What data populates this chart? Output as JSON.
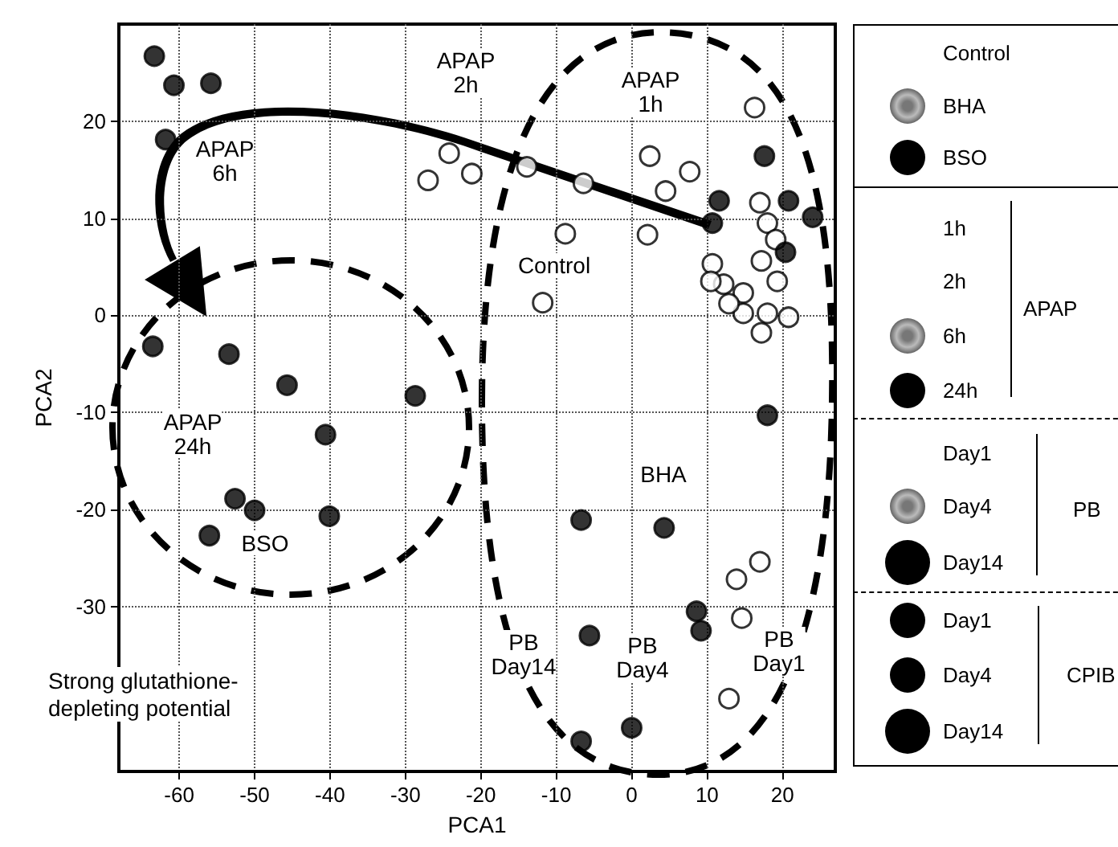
{
  "chart_data": {
    "type": "scatter",
    "xlabel": "PCA1",
    "ylabel": "PCA2",
    "xlim": [
      -68,
      27
    ],
    "ylim": [
      -47,
      30
    ],
    "xticks": [
      -60,
      -50,
      -40,
      -30,
      -20,
      -10,
      0,
      10,
      20
    ],
    "yticks": [
      -30,
      -20,
      -10,
      0,
      10,
      20
    ],
    "grid": true,
    "marker": "circle",
    "series": [
      {
        "color": "#ffffff",
        "x": [
          16.3,
          -24.2,
          -27,
          -21.2,
          -13.9,
          -6.4,
          2.4,
          7.7,
          4.5,
          -8.8,
          2.1,
          -11.8,
          10.7,
          17,
          18,
          19.1,
          17.2,
          19.3,
          12.2,
          10.5,
          14.8,
          14.8,
          18,
          20.8,
          17.2,
          12.9,
          17,
          13.9,
          14.6,
          12.9
        ],
        "values": [
          21.4,
          16.7,
          13.9,
          14.6,
          15.3,
          13.6,
          16.4,
          14.8,
          12.8,
          8.4,
          8.3,
          1.3,
          5.3,
          11.6,
          9.5,
          7.8,
          5.6,
          3.5,
          3.2,
          3.5,
          2.3,
          0.2,
          0.2,
          -0.2,
          -1.8,
          1.2,
          -25.4,
          -27.2,
          -31.2,
          -39.5
        ]
      },
      {
        "color": "#000000",
        "x": [
          -63.3,
          -60.7,
          -55.8,
          -61.8,
          -63.5,
          -53.4,
          -45.7,
          -40.6,
          -28.7,
          -52.6,
          -50,
          -56,
          -40.1,
          -6.7,
          4.3,
          8.6,
          9.2,
          -5.6,
          -6.7,
          0,
          18,
          17.6,
          11.6,
          10.7,
          20.8,
          24,
          20.4
        ],
        "values": [
          26.7,
          23.7,
          23.9,
          18.1,
          -3.2,
          -4,
          -7.2,
          -12.3,
          -8.3,
          -18.9,
          -20.1,
          -22.7,
          -20.7,
          -21.1,
          -21.9,
          -30.5,
          -32.5,
          -33,
          -43.9,
          -42.5,
          -10.3,
          16.4,
          11.8,
          9.5,
          11.8,
          10.1,
          6.5
        ]
      }
    ],
    "annotations": [
      "APAP\n2h",
      "APAP\n1h",
      "APAP\n6h",
      "Control",
      "APAP\n24h",
      "BSO",
      "BHA",
      "PB\nDay14",
      "PB\nDay4",
      "PB\nDay1",
      "Strong glutathione-\ndepleting potential",
      "Control",
      "BHA",
      "BSO",
      "1h",
      "2h",
      "6h",
      "24h",
      "APAP",
      "Day1",
      "Day4",
      "Day14",
      "PB",
      "Day1",
      "Day4",
      "Day14",
      "CPIB"
    ]
  }
}
